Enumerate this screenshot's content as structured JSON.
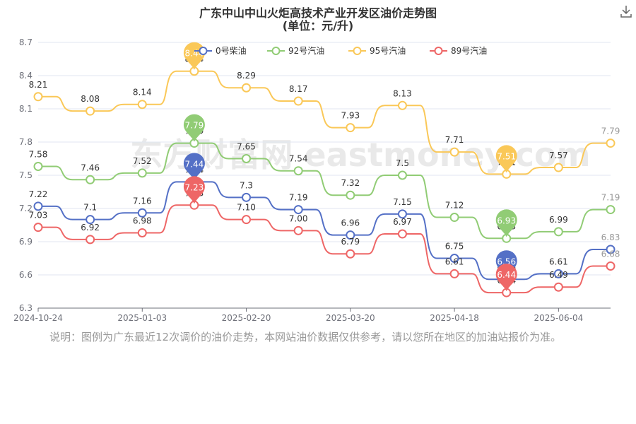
{
  "header": {
    "title": "广东中山中山火炬高技术产业开发区油价走势图",
    "subtitle": "(单位：元/升)"
  },
  "note": "说明：图例为广东最近12次调价的油价走势，本网站油价数据仅供参考，请以您所在地区的加油站报价为准。",
  "watermark": "东方财富网 eastmoney.com",
  "colors": {
    "diesel0": "#5470c6",
    "gas92": "#91cc75",
    "gas95": "#fac858",
    "gas89": "#ee6666"
  },
  "chart_data": {
    "type": "line",
    "title": "广东中山中山火炬高技术产业开发区油价走势图",
    "subtitle": "(单位：元/升)",
    "x_index": [
      0,
      1,
      2,
      3,
      4,
      5,
      6,
      7,
      8,
      9,
      10,
      11
    ],
    "x_tick_labels": [
      "2024-10-24",
      "2025-01-03",
      "2025-02-20",
      "2025-03-20",
      "2025-04-18",
      "2025-06-04"
    ],
    "ylim": [
      6.3,
      8.7
    ],
    "y_ticks": [
      6.3,
      6.6,
      6.9,
      7.2,
      7.5,
      7.8,
      8.1,
      8.4,
      8.7
    ],
    "grid": "horizontal",
    "legend_position": "top",
    "series": [
      {
        "name": "0号柴油",
        "color": "#5470c6",
        "values": [
          7.22,
          7.1,
          7.16,
          7.44,
          7.3,
          7.19,
          6.96,
          7.15,
          6.75,
          6.56,
          6.61,
          6.83
        ],
        "labels": [
          "7.22",
          "7.1",
          "7.16",
          "7.44",
          "7.3",
          "7.19",
          "6.96",
          "7.15",
          "6.75",
          "6.56",
          "6.61",
          "6.83"
        ],
        "max_index": 3,
        "min_index": 9
      },
      {
        "name": "92号汽油",
        "color": "#91cc75",
        "values": [
          7.58,
          7.46,
          7.52,
          7.79,
          7.65,
          7.54,
          7.32,
          7.5,
          7.12,
          6.93,
          6.99,
          7.19
        ],
        "labels": [
          "7.58",
          "7.46",
          "7.52",
          "7.79",
          "7.65",
          "7.54",
          "7.32",
          "7.5",
          "7.12",
          "6.93",
          "6.99",
          "7.19"
        ],
        "max_index": 3,
        "min_index": 9
      },
      {
        "name": "95号汽油",
        "color": "#fac858",
        "values": [
          8.21,
          8.08,
          8.14,
          8.44,
          8.29,
          8.17,
          7.93,
          8.13,
          7.71,
          7.51,
          7.57,
          7.79
        ],
        "labels": [
          "8.21",
          "8.08",
          "8.14",
          "8.44",
          "8.29",
          "8.17",
          "7.93",
          "8.13",
          "7.71",
          "7.51",
          "7.57",
          "7.79"
        ],
        "max_index": 3,
        "min_index": 9
      },
      {
        "name": "89号汽油",
        "color": "#ee6666",
        "values": [
          7.03,
          6.92,
          6.98,
          7.23,
          7.1,
          7.0,
          6.79,
          6.97,
          6.61,
          6.44,
          6.49,
          6.68
        ],
        "labels": [
          "7.03",
          "6.92",
          "6.98",
          "7.23",
          "7.10",
          "7.00",
          "6.79",
          "6.97",
          "6.61",
          "6.44",
          "6.49",
          "6.68"
        ],
        "max_index": 3,
        "min_index": 9
      }
    ]
  }
}
